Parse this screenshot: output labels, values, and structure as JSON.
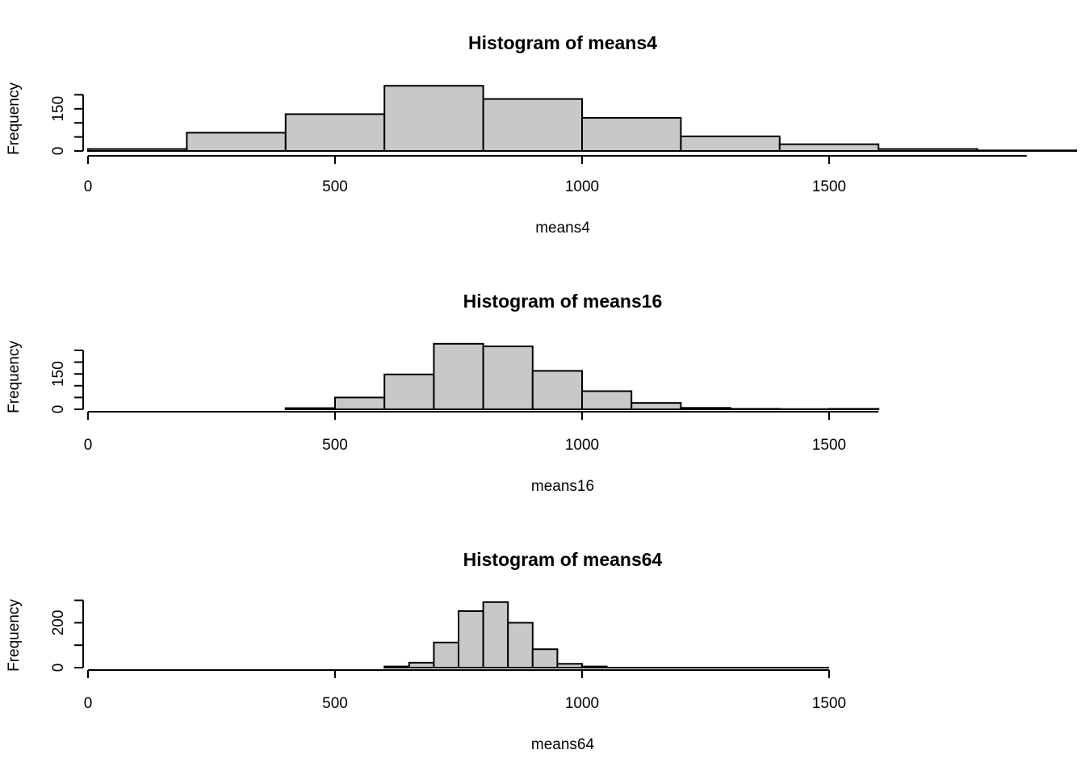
{
  "chart_data": [
    {
      "type": "bar",
      "title": "Histogram of means4",
      "xlabel": "means4",
      "ylabel": "Frequency",
      "xlim": [
        0,
        1900
      ],
      "x_ticks": [
        0,
        500,
        1000,
        1500
      ],
      "y_ticks": [
        0,
        50,
        100,
        150,
        200
      ],
      "y_tick_labels": [
        "0",
        "",
        "",
        "150",
        ""
      ],
      "bin_edges": [
        0,
        200,
        400,
        600,
        800,
        1000,
        1200,
        1400,
        1600,
        1800,
        2000
      ],
      "values": [
        7,
        65,
        131,
        232,
        185,
        118,
        52,
        24,
        7,
        2
      ],
      "grid": false
    },
    {
      "type": "bar",
      "title": "Histogram of means16",
      "xlabel": "means16",
      "ylabel": "Frequency",
      "xlim": [
        0,
        1600
      ],
      "x_ticks": [
        0,
        500,
        1000,
        1500
      ],
      "y_ticks": [
        0,
        50,
        100,
        150,
        200,
        250
      ],
      "y_tick_labels": [
        "0",
        "",
        "",
        "150",
        "",
        ""
      ],
      "bin_edges": [
        400,
        500,
        600,
        700,
        800,
        900,
        1000,
        1100,
        1200,
        1300,
        1400,
        1500,
        1600
      ],
      "values": [
        5,
        50,
        148,
        278,
        267,
        163,
        77,
        27,
        6,
        2,
        1,
        2
      ],
      "grid": false
    },
    {
      "type": "bar",
      "title": "Histogram of means64",
      "xlabel": "means64",
      "ylabel": "Frequency",
      "xlim": [
        0,
        1500
      ],
      "x_ticks": [
        0,
        500,
        1000,
        1500
      ],
      "y_ticks": [
        0,
        100,
        200,
        300
      ],
      "y_tick_labels": [
        "0",
        "",
        "200",
        ""
      ],
      "bin_edges": [
        600,
        650,
        700,
        750,
        800,
        850,
        900,
        950,
        1000,
        1050
      ],
      "values": [
        5,
        22,
        112,
        252,
        292,
        200,
        82,
        17,
        5
      ],
      "grid": false
    }
  ]
}
